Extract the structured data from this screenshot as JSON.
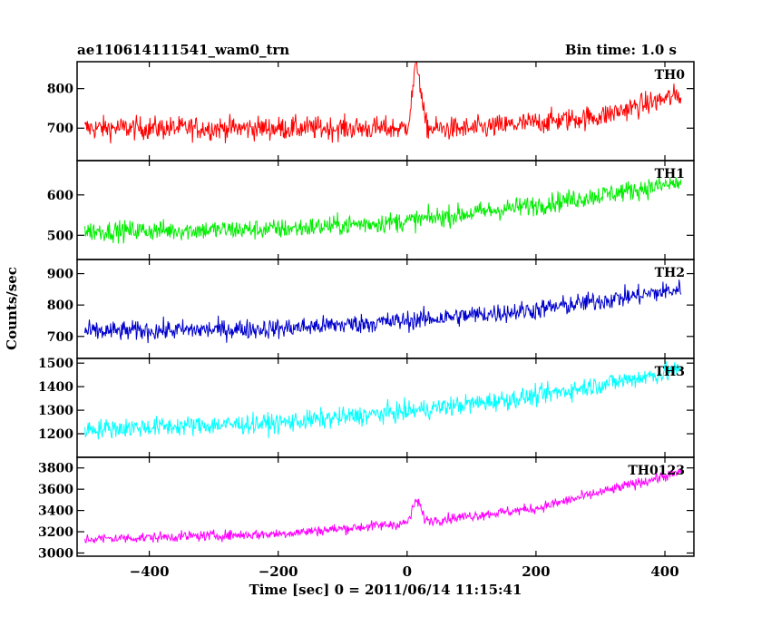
{
  "header": {
    "title": "ae110614111541_wam0_trn",
    "bin_time": "Bin time: 1.0 s"
  },
  "chart_data": {
    "type": "line",
    "xlabel": "Time [sec] 0 = 2011/06/14 11:15:41",
    "ylabel": "Counts/sec",
    "xlim": [
      -512,
      445
    ],
    "x_ticks": [
      -400,
      -200,
      0,
      200,
      400
    ],
    "x_tick_labels": [
      "−400",
      "−200",
      "0",
      "200",
      "400"
    ],
    "x_range_data": [
      -500,
      425
    ],
    "bin_time_s": 1.0,
    "grid": false,
    "panels": [
      {
        "name": "TH0",
        "color": "#ff0000",
        "ylim": [
          618,
          868
        ],
        "y_ticks": [
          700,
          800
        ],
        "trend": [
          [
            -500,
            700
          ],
          [
            -100,
            700
          ],
          [
            100,
            698
          ],
          [
            300,
            730
          ],
          [
            425,
            785
          ]
        ],
        "noise": 42,
        "peak": {
          "x": 15,
          "amplitude": 160,
          "width": 9
        }
      },
      {
        "name": "TH1",
        "color": "#00ee00",
        "ylim": [
          440,
          685
        ],
        "y_ticks": [
          500,
          600
        ],
        "trend": [
          [
            -500,
            510
          ],
          [
            -200,
            515
          ],
          [
            0,
            535
          ],
          [
            200,
            575
          ],
          [
            425,
            630
          ]
        ],
        "noise": 36
      },
      {
        "name": "TH2",
        "color": "#0000cc",
        "ylim": [
          630,
          945
        ],
        "y_ticks": [
          700,
          800,
          900
        ],
        "trend": [
          [
            -500,
            715
          ],
          [
            -200,
            725
          ],
          [
            0,
            750
          ],
          [
            200,
            785
          ],
          [
            425,
            850
          ]
        ],
        "noise": 45
      },
      {
        "name": "TH3",
        "color": "#00ffff",
        "ylim": [
          1100,
          1520
        ],
        "y_ticks": [
          1200,
          1300,
          1400,
          1500
        ],
        "trend": [
          [
            -500,
            1220
          ],
          [
            -200,
            1245
          ],
          [
            0,
            1295
          ],
          [
            200,
            1360
          ],
          [
            425,
            1470
          ]
        ],
        "noise": 60
      },
      {
        "name": "TH0123",
        "color": "#ff00ff",
        "ylim": [
          2970,
          3900
        ],
        "y_ticks": [
          3000,
          3200,
          3400,
          3600,
          3800
        ],
        "trend": [
          [
            -500,
            3130
          ],
          [
            -200,
            3180
          ],
          [
            0,
            3280
          ],
          [
            200,
            3420
          ],
          [
            425,
            3760
          ]
        ],
        "noise": 70,
        "peak": {
          "x": 15,
          "amplitude": 200,
          "width": 9
        }
      }
    ]
  }
}
